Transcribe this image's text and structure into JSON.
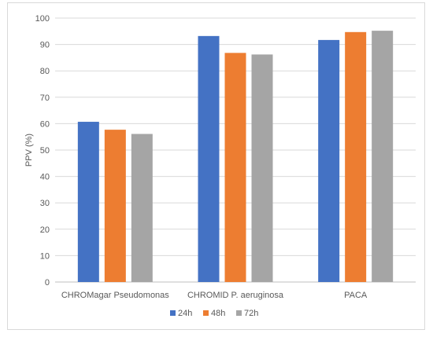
{
  "chart_data": {
    "type": "bar",
    "categories": [
      "CHROMagar Pseudomonas",
      "CHROMID P. aeruginosa",
      "PACA"
    ],
    "series": [
      {
        "name": "24h",
        "color": "#4472c4",
        "values": [
          60.7,
          93.2,
          91.7
        ]
      },
      {
        "name": "48h",
        "color": "#ed7d31",
        "values": [
          57.7,
          86.8,
          94.7
        ]
      },
      {
        "name": "72h",
        "color": "#a5a5a5",
        "values": [
          56.1,
          86.2,
          95.2
        ]
      }
    ],
    "title": "",
    "xlabel": "",
    "ylabel": "PPV  (%)",
    "ylim": [
      0,
      100
    ],
    "yticks": [
      0,
      10,
      20,
      30,
      40,
      50,
      60,
      70,
      80,
      90,
      100
    ],
    "grid": "horizontal",
    "legend_position": "bottom"
  }
}
